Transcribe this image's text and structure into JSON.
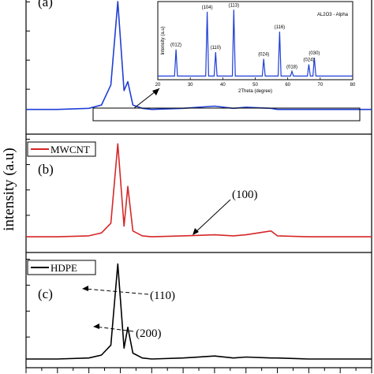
{
  "figure": {
    "ylabel": "intensity (a.u)"
  },
  "chart_data": [
    {
      "type": "line",
      "panel_label": "(a)",
      "color": "#1f3fd6",
      "series": [
        {
          "x": [
            5,
            10,
            15,
            17,
            18.5,
            19.6,
            20.6,
            21.2,
            22,
            23.5,
            25,
            30,
            35,
            38,
            40,
            44,
            45,
            50,
            55,
            60
          ],
          "y": [
            0.08,
            0.08,
            0.09,
            0.12,
            0.3,
            1.05,
            0.25,
            0.33,
            0.12,
            0.09,
            0.08,
            0.09,
            0.11,
            0.09,
            0.1,
            0.09,
            0.08,
            0.08,
            0.08,
            0.08
          ]
        }
      ],
      "xlim": [
        5,
        60
      ],
      "ylim": [
        0,
        1.1
      ],
      "inset": {
        "title": "AL2O3 - Alpha",
        "xlabel": "2Theta (degree)",
        "ylabel": "Intensity (a.u)",
        "xlim": [
          20,
          80
        ],
        "ylim": [
          0,
          1.05
        ],
        "x_ticks": [
          20,
          30,
          40,
          50,
          60,
          70,
          80
        ],
        "x_tick_labels": [
          "20",
          "30",
          "40",
          "50",
          "60",
          "70",
          "80"
        ],
        "peaks": [
          {
            "x": 25.6,
            "y": 0.42,
            "label": "(012)"
          },
          {
            "x": 35.2,
            "y": 0.97,
            "label": "(104)"
          },
          {
            "x": 37.8,
            "y": 0.38,
            "label": "(110)"
          },
          {
            "x": 43.4,
            "y": 1.0,
            "label": "(113)"
          },
          {
            "x": 52.6,
            "y": 0.28,
            "label": "(024)"
          },
          {
            "x": 57.5,
            "y": 0.68,
            "label": "(116)"
          },
          {
            "x": 61.3,
            "y": 0.1,
            "label": "(018)"
          },
          {
            "x": 66.5,
            "y": 0.2,
            "label": "(024)"
          },
          {
            "x": 68.2,
            "y": 0.3,
            "label": "(030)"
          }
        ]
      }
    },
    {
      "type": "line",
      "panel_label": "(b)",
      "legend": "MWCNT",
      "color": "#d62728",
      "series": [
        {
          "x": [
            5,
            10,
            15,
            17,
            18.5,
            19.6,
            20.6,
            21.2,
            22,
            23.5,
            25,
            30,
            35,
            38,
            40,
            44,
            45,
            50,
            55,
            60
          ],
          "y": [
            0.04,
            0.04,
            0.05,
            0.08,
            0.18,
            1.0,
            0.15,
            0.56,
            0.1,
            0.05,
            0.04,
            0.05,
            0.06,
            0.05,
            0.06,
            0.1,
            0.05,
            0.04,
            0.04,
            0.04
          ]
        }
      ],
      "annotations": [
        {
          "text": "(100)",
          "x": 44,
          "y": 0.1
        }
      ],
      "xlim": [
        5,
        60
      ],
      "ylim": [
        0,
        1.1
      ]
    },
    {
      "type": "line",
      "panel_label": "(c)",
      "legend": "HDPE",
      "color": "#000000",
      "series": [
        {
          "x": [
            5,
            10,
            15,
            17,
            18.5,
            19.6,
            20.6,
            21.2,
            22,
            23.5,
            25,
            30,
            35,
            38,
            40,
            44,
            45,
            50,
            55,
            60
          ],
          "y": [
            0.04,
            0.04,
            0.05,
            0.08,
            0.18,
            1.0,
            0.15,
            0.36,
            0.1,
            0.05,
            0.04,
            0.05,
            0.07,
            0.05,
            0.06,
            0.05,
            0.05,
            0.04,
            0.04,
            0.04
          ]
        }
      ],
      "annotations": [
        {
          "text": "(110)",
          "x": 19.6,
          "y": 1.0
        },
        {
          "text": "(200)",
          "x": 21.2,
          "y": 0.36
        }
      ],
      "xlim": [
        5,
        60
      ],
      "ylim": [
        0,
        1.1
      ]
    }
  ]
}
